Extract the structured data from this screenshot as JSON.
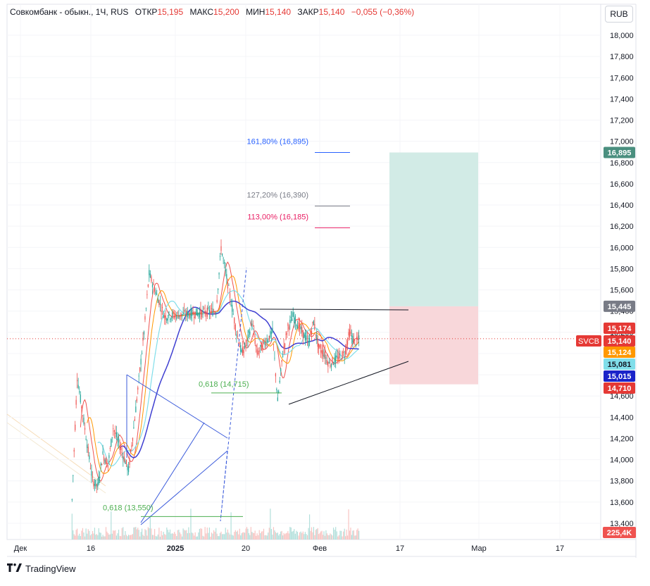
{
  "header": {
    "symbol": "Совкомбанк - обыкн., 1Ч, RUS",
    "open_label": "ОТКР",
    "open_value": "15,195",
    "high_label": "МАКС",
    "high_value": "15,200",
    "low_label": "МИН",
    "low_value": "15,140",
    "close_label": "ЗАКР",
    "close_value": "15,140",
    "change": "−0,055 (−0,36%)"
  },
  "currency_button": "RUB",
  "footer": {
    "brand": "TradingView",
    "logo_mark": "17"
  },
  "colors": {
    "up": "#26a69a",
    "down": "#ef5350",
    "accent_blue": "#2962ff",
    "target_zone": "#d2ebe6",
    "stop_zone": "#f8d7da"
  },
  "chart_data": {
    "type": "candlestick",
    "title": "Совкомбанк - обыкн., 1Ч, RUS",
    "ticker": "SVCB",
    "timeframe": "1Ч",
    "x_tick_labels": [
      "Дек",
      "16",
      "2025",
      "20",
      "Фев",
      "17",
      "Мар",
      "17"
    ],
    "y_tick_labels": [
      "18,000",
      "17,800",
      "17,600",
      "17,400",
      "17,200",
      "17,000",
      "16,800",
      "16,600",
      "16,400",
      "16,200",
      "16,000",
      "15,800",
      "15,600",
      "15,400",
      "15,200",
      "15,000",
      "14,800",
      "14,600",
      "14,400",
      "14,200",
      "14,000",
      "13,800",
      "13,600",
      "13,400"
    ],
    "ylim": [
      13.4,
      18.1
    ],
    "last_price": 15.14,
    "price_path": [
      {
        "date": "2024-12-12",
        "price": 13.62
      },
      {
        "date": "2024-12-13",
        "price": 14.78
      },
      {
        "date": "2024-12-16",
        "price": 13.8
      },
      {
        "date": "2024-12-17",
        "price": 13.75
      },
      {
        "date": "2024-12-18",
        "price": 14.05
      },
      {
        "date": "2024-12-19",
        "price": 13.95
      },
      {
        "date": "2024-12-20",
        "price": 14.3
      },
      {
        "date": "2024-12-23",
        "price": 13.9
      },
      {
        "date": "2024-12-24",
        "price": 14.3
      },
      {
        "date": "2024-12-25",
        "price": 14.75
      },
      {
        "date": "2024-12-26",
        "price": 15.2
      },
      {
        "date": "2024-12-27",
        "price": 15.75
      },
      {
        "date": "2024-12-30",
        "price": 15.35
      },
      {
        "date": "2025-01-09",
        "price": 15.4
      },
      {
        "date": "2025-01-10",
        "price": 16.0
      },
      {
        "date": "2025-01-13",
        "price": 15.2
      },
      {
        "date": "2025-01-14",
        "price": 15.0
      },
      {
        "date": "2025-01-15",
        "price": 15.1
      },
      {
        "date": "2025-01-16",
        "price": 15.3
      },
      {
        "date": "2025-01-17",
        "price": 15.0
      },
      {
        "date": "2025-01-20",
        "price": 15.2
      },
      {
        "date": "2025-01-21",
        "price": 14.55
      },
      {
        "date": "2025-01-22",
        "price": 15.0
      },
      {
        "date": "2025-01-23",
        "price": 15.25
      },
      {
        "date": "2025-01-24",
        "price": 15.35
      },
      {
        "date": "2025-01-27",
        "price": 15.1
      },
      {
        "date": "2025-01-28",
        "price": 15.3
      },
      {
        "date": "2025-01-29",
        "price": 15.05
      },
      {
        "date": "2025-01-30",
        "price": 15.0
      },
      {
        "date": "2025-01-31",
        "price": 14.9
      },
      {
        "date": "2025-02-03",
        "price": 15.0
      },
      {
        "date": "2025-02-04",
        "price": 15.2
      },
      {
        "date": "2025-02-05",
        "price": 15.1
      },
      {
        "date": "2025-02-06",
        "price": 15.14
      }
    ],
    "price_labels": [
      {
        "value": "16,895",
        "color": "#4a8f7f",
        "text_color": "#ffffff"
      },
      {
        "value": "15,445",
        "color": "#787b86",
        "text_color": "#ffffff"
      },
      {
        "value": "15,174",
        "color": "#e53935",
        "text_color": "#ffffff"
      },
      {
        "value": "15,140",
        "color": "#e53935",
        "text_color": "#ffffff",
        "ticker": "SVCB"
      },
      {
        "value": "15,124",
        "color": "#ff9800",
        "text_color": "#ffffff"
      },
      {
        "value": "15,081",
        "color": "#80deea",
        "text_color": "#131722"
      },
      {
        "value": "15,015",
        "color": "#1a23c9",
        "text_color": "#ffffff"
      },
      {
        "value": "14,710",
        "color": "#e53935",
        "text_color": "#ffffff"
      }
    ],
    "volume_label": "225,4K",
    "fib_levels": [
      {
        "text": "161,80% (16,895)",
        "color": "#2962ff",
        "price": 16.895
      },
      {
        "text": "127,20% (16,390)",
        "color": "#787b86",
        "price": 16.39
      },
      {
        "text": "113,00% (16,185)",
        "color": "#e91e63",
        "price": 16.185
      }
    ],
    "retracement_labels": [
      {
        "text": "0,618 (14,715)",
        "color": "#4caf50",
        "price": 14.715
      },
      {
        "text": "0,618 (13,550)",
        "color": "#4caf50",
        "price": 13.55
      }
    ],
    "position_tool": {
      "target": 16.895,
      "entry": 15.445,
      "stop": 14.71
    }
  }
}
